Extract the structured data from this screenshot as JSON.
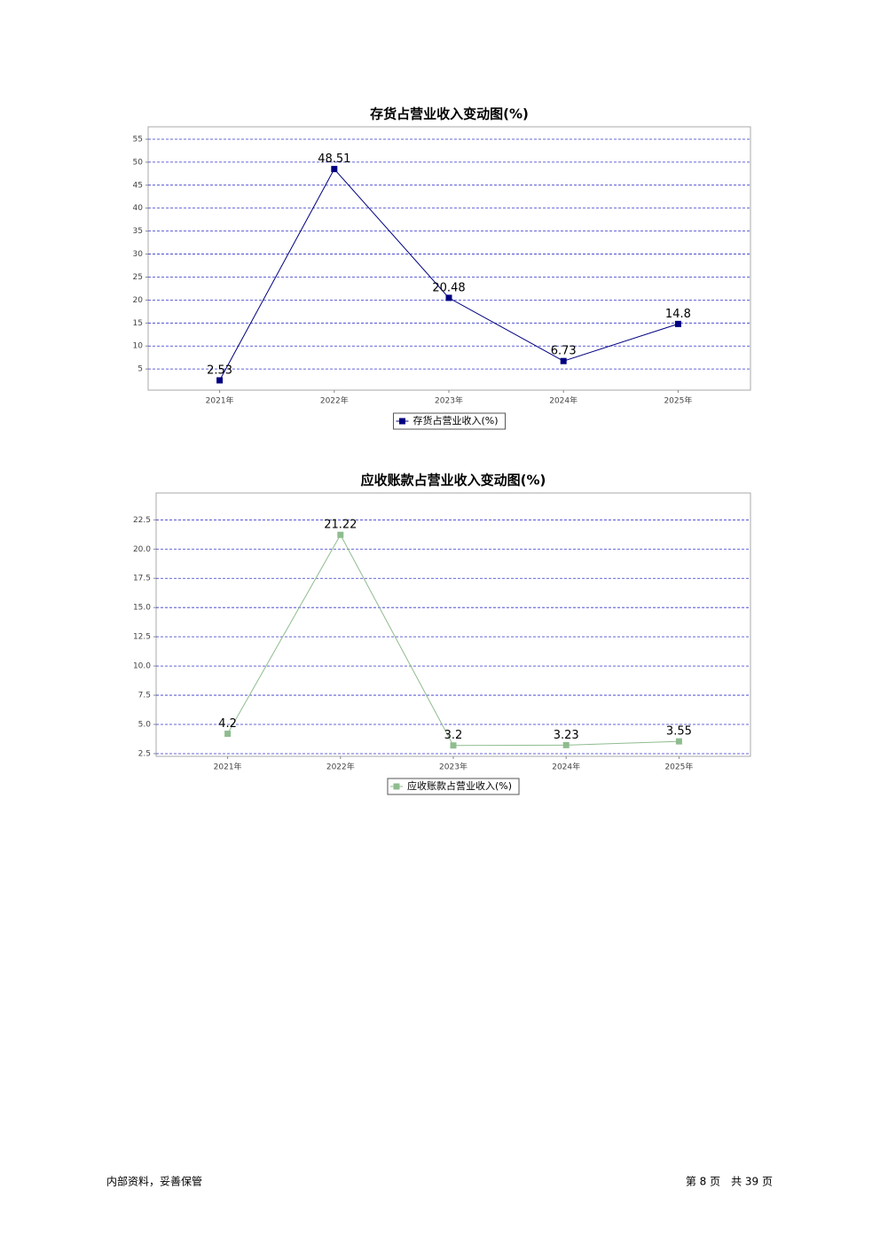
{
  "chart_data": [
    {
      "type": "line",
      "title": "存货占营业收入变动图(%)",
      "categories": [
        "2021年",
        "2022年",
        "2023年",
        "2024年",
        "2025年"
      ],
      "series": [
        {
          "name": "存货占营业收入(%)",
          "color": "#000080",
          "values": [
            2.53,
            48.51,
            20.48,
            6.73,
            14.8
          ]
        }
      ],
      "ylim": [
        0.4,
        57.7
      ],
      "yticks": [
        5,
        10,
        15,
        20,
        25,
        30,
        35,
        40,
        45,
        50,
        55
      ],
      "grid": true,
      "legend": "bottom"
    },
    {
      "type": "line",
      "title": "应收账款占营业收入变动图(%)",
      "categories": [
        "2021年",
        "2022年",
        "2023年",
        "2024年",
        "2025年"
      ],
      "series": [
        {
          "name": "应收账款占营业收入(%)",
          "color": "#8fbc8f",
          "values": [
            4.2,
            21.22,
            3.2,
            3.23,
            3.55
          ]
        }
      ],
      "ylim": [
        2.27,
        24.8
      ],
      "yticks": [
        2.5,
        {
          "value": 5,
          "label": "5.0"
        },
        7.5,
        {
          "value": 10,
          "label": "10.0"
        },
        12.5,
        {
          "value": 15,
          "label": "15.0"
        },
        17.5,
        {
          "value": 20,
          "label": "20.0"
        },
        22.5
      ],
      "grid": true,
      "legend": "bottom"
    }
  ],
  "footer": {
    "left": "内部资料，妥善保管",
    "right": "第 8 页　共 39 页"
  }
}
